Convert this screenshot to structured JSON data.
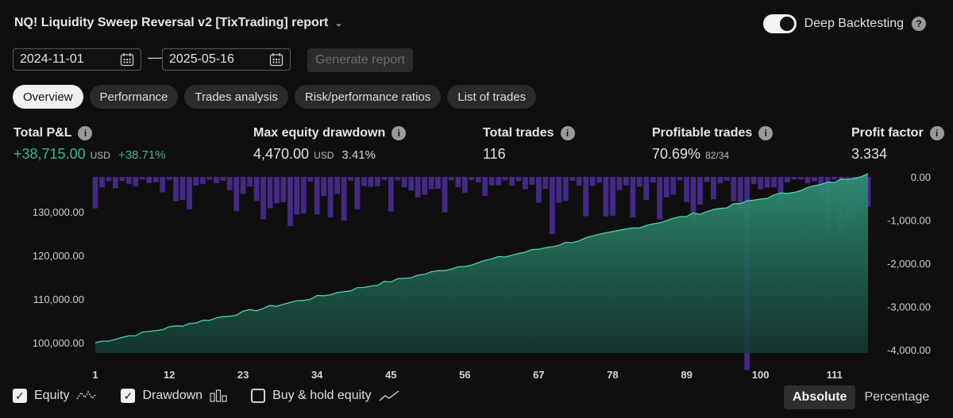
{
  "header": {
    "title": "NQ! Liquidity Sweep Reversal v2 [TixTrading] report",
    "deep_backtesting_label": "Deep Backtesting",
    "help_glyph": "?"
  },
  "dates": {
    "from": "2024-11-01",
    "to": "2025-05-16",
    "separator": "—",
    "generate_label": "Generate report"
  },
  "tabs": [
    "Overview",
    "Performance",
    "Trades analysis",
    "Risk/performance ratios",
    "List of trades"
  ],
  "stats": {
    "total_pnl": {
      "label": "Total P&L",
      "value": "+38,715.00",
      "currency": "USD",
      "pct": "+38.71%"
    },
    "max_dd": {
      "label": "Max equity drawdown",
      "value": "4,470.00",
      "currency": "USD",
      "pct": "3.41%"
    },
    "total_trades": {
      "label": "Total trades",
      "value": "116"
    },
    "profitable": {
      "label": "Profitable trades",
      "value": "70.69%",
      "ratio": "82/34"
    },
    "profit_factor": {
      "label": "Profit factor",
      "value": "3.334"
    }
  },
  "chart_data": {
    "type": "area",
    "series": [
      {
        "name": "Equity",
        "start": 100000,
        "end": 138715,
        "num_trades": 116
      },
      {
        "name": "Drawdown",
        "max": -4470
      }
    ],
    "y_left": {
      "range": [
        98000,
        138000
      ],
      "ticks": [
        "100,000.00",
        "110,000.00",
        "120,000.00",
        "130,000.00"
      ],
      "tick_values": [
        100000,
        110000,
        120000,
        130000
      ]
    },
    "y_right": {
      "range": [
        -4000,
        0
      ],
      "ticks": [
        "0.00",
        "-1,000.00",
        "-2,000.00",
        "-3,000.00",
        "-4,000.00"
      ],
      "tick_values": [
        0,
        -1000,
        -2000,
        -3000,
        -4000
      ]
    },
    "x_ticks": [
      "1",
      "12",
      "23",
      "34",
      "45",
      "56",
      "67",
      "78",
      "89",
      "100",
      "111"
    ],
    "x_tick_values": [
      1,
      12,
      23,
      34,
      45,
      56,
      67,
      78,
      89,
      100,
      111
    ]
  },
  "legend": {
    "equity": "Equity",
    "drawdown": "Drawdown",
    "buy_hold": "Buy & hold equity"
  },
  "mode": {
    "absolute": "Absolute",
    "percentage": "Percentage"
  },
  "colors": {
    "accent": "#3fb491",
    "drawdown": "#4a2a8c"
  }
}
